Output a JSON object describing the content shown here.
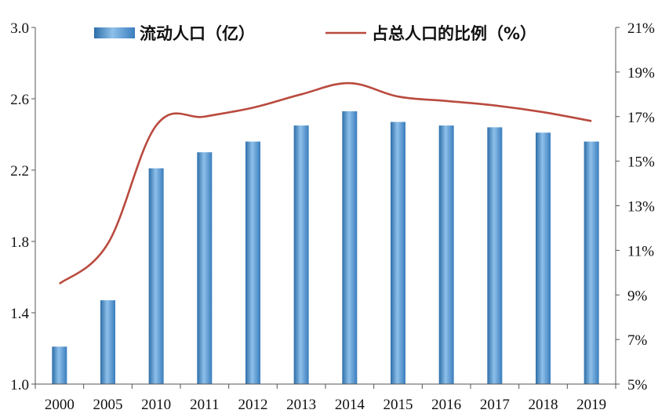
{
  "chart_data": {
    "type": "bar",
    "categories": [
      "2000",
      "2005",
      "2010",
      "2011",
      "2012",
      "2013",
      "2014",
      "2015",
      "2016",
      "2017",
      "2018",
      "2019"
    ],
    "series": [
      {
        "name": "流动人口（亿）",
        "type": "bar",
        "axis": "left",
        "values": [
          1.21,
          1.47,
          2.21,
          2.3,
          2.36,
          2.45,
          2.53,
          2.47,
          2.45,
          2.44,
          2.41,
          2.36
        ]
      },
      {
        "name": "占总人口的比例（%）",
        "type": "line",
        "axis": "right",
        "values": [
          9.5,
          11.3,
          16.6,
          17.0,
          17.4,
          18.0,
          18.5,
          17.9,
          17.7,
          17.5,
          17.2,
          16.8
        ]
      }
    ],
    "left_axis": {
      "ylim": [
        1.0,
        3.0
      ],
      "ticks": [
        "1.0",
        "1.4",
        "1.8",
        "2.2",
        "2.6",
        "3.0"
      ]
    },
    "right_axis": {
      "ylim": [
        5,
        21
      ],
      "ticks": [
        "5%",
        "7%",
        "9%",
        "11%",
        "13%",
        "15%",
        "17%",
        "19%",
        "21%"
      ]
    },
    "legend_position": "top",
    "grid": false,
    "colors": {
      "bar": "#4a8cc8",
      "bar_dark": "#2d6ea8",
      "bar_light": "#8ec0ea",
      "line": "#b94a3e",
      "axis": "#555555"
    }
  }
}
